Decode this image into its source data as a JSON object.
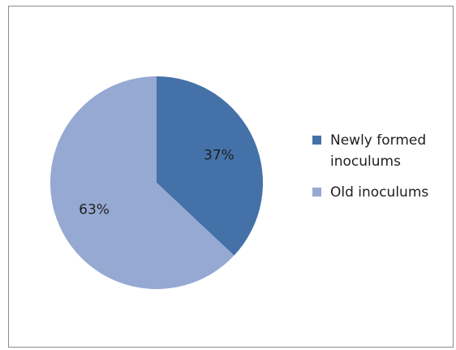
{
  "chart_data": {
    "type": "pie",
    "title": "",
    "slices": [
      {
        "label": "Newly formed inoculums",
        "value": 37,
        "display": "37%",
        "color": "#4472a8"
      },
      {
        "label": "Old inoculums",
        "value": 63,
        "display": "63%",
        "color": "#95a9d2"
      }
    ],
    "legend_position": "right",
    "start_angle_deg": 0,
    "direction": "clockwise"
  }
}
